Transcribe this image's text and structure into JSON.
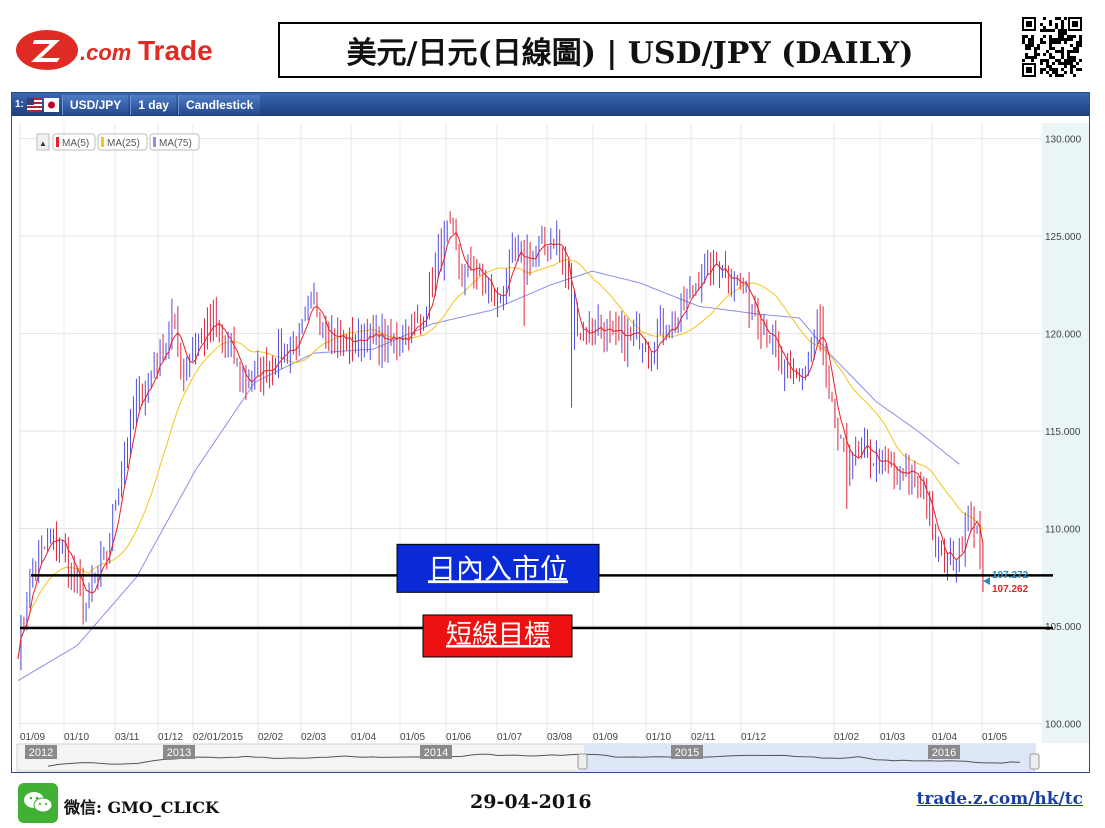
{
  "header": {
    "logo_text": "Z.com Trade",
    "title": "美元/日元(日線圖) | USD/JPY (DAILY)"
  },
  "toolbar": {
    "index": "1:",
    "symbol": "USD/JPY",
    "interval": "1 day",
    "style": "Candlestick"
  },
  "legend": {
    "toggle": "▲",
    "items": [
      {
        "label": "MA(5)",
        "color": "#e8202a"
      },
      {
        "label": "MA(25)",
        "color": "#f5c518"
      },
      {
        "label": "MA(75)",
        "color": "#8a8ee8"
      }
    ]
  },
  "chart_data": {
    "type": "candlestick",
    "ylim": [
      99,
      130.8
    ],
    "y_ticks": [
      "130.000",
      "125.000",
      "120.000",
      "115.000",
      "110.000",
      "105.000",
      "100.000"
    ],
    "x_ticks": [
      "01/09",
      "01/10",
      "03/11",
      "01/12",
      "02/01/2015",
      "02/02",
      "02/03",
      "01/04",
      "01/05",
      "01/06",
      "01/07",
      "03/08",
      "01/09",
      "01/10",
      "02/11",
      "01/12",
      "01/02",
      "01/03",
      "01/04",
      "01/05"
    ],
    "years": [
      "2012",
      "2013",
      "2014",
      "2015",
      "2016"
    ],
    "price_key": [
      [
        0,
        104.0
      ],
      [
        4,
        107.5
      ],
      [
        10,
        109.2
      ],
      [
        14,
        109.5
      ],
      [
        19,
        107.5
      ],
      [
        23,
        106.0
      ],
      [
        26,
        107.5
      ],
      [
        30,
        108.5
      ],
      [
        34,
        112.5
      ],
      [
        40,
        116.5
      ],
      [
        46,
        118.0
      ],
      [
        52,
        120.5
      ],
      [
        56,
        118.5
      ],
      [
        60,
        119.5
      ],
      [
        66,
        120.5
      ],
      [
        72,
        119.0
      ],
      [
        76,
        117.5
      ],
      [
        82,
        118.0
      ],
      [
        88,
        119.0
      ],
      [
        94,
        119.5
      ],
      [
        100,
        121.5
      ],
      [
        106,
        120.0
      ],
      [
        112,
        119.5
      ],
      [
        118,
        120.0
      ],
      [
        124,
        119.5
      ],
      [
        130,
        120.0
      ],
      [
        136,
        120.5
      ],
      [
        142,
        124.0
      ],
      [
        146,
        125.0
      ],
      [
        150,
        123.0
      ],
      [
        154,
        123.5
      ],
      [
        158,
        122.5
      ],
      [
        162,
        121.5
      ],
      [
        166,
        123.5
      ],
      [
        172,
        124.0
      ],
      [
        178,
        124.5
      ],
      [
        182,
        125.0
      ],
      [
        186,
        122.5
      ],
      [
        190,
        120.0
      ],
      [
        196,
        120.5
      ],
      [
        202,
        119.5
      ],
      [
        208,
        120.0
      ],
      [
        214,
        119.5
      ],
      [
        220,
        120.5
      ],
      [
        224,
        121.0
      ],
      [
        230,
        123.0
      ],
      [
        236,
        123.5
      ],
      [
        242,
        123.0
      ],
      [
        248,
        121.5
      ],
      [
        254,
        120.0
      ],
      [
        258,
        118.0
      ],
      [
        262,
        117.5
      ],
      [
        266,
        118.0
      ],
      [
        270,
        120.5
      ],
      [
        274,
        116.5
      ],
      [
        278,
        114.0
      ],
      [
        282,
        113.5
      ],
      [
        286,
        114.0
      ],
      [
        290,
        113.5
      ],
      [
        294,
        113.0
      ],
      [
        298,
        112.5
      ],
      [
        302,
        113.0
      ],
      [
        306,
        112.0
      ],
      [
        310,
        109.0
      ],
      [
        314,
        108.5
      ],
      [
        318,
        109.0
      ],
      [
        322,
        111.0
      ],
      [
        324,
        109.5
      ],
      [
        326,
        107.3
      ]
    ],
    "ma75_key": [
      [
        0,
        102.2
      ],
      [
        20,
        104.0
      ],
      [
        40,
        107.5
      ],
      [
        60,
        113.0
      ],
      [
        80,
        117.5
      ],
      [
        100,
        119.0
      ],
      [
        120,
        119.2
      ],
      [
        140,
        120.5
      ],
      [
        160,
        121.2
      ],
      [
        180,
        122.5
      ],
      [
        194,
        123.2
      ],
      [
        210,
        122.6
      ],
      [
        230,
        121.4
      ],
      [
        250,
        121.0
      ],
      [
        264,
        120.8
      ],
      [
        274,
        119.0
      ],
      [
        290,
        116.5
      ],
      [
        304,
        115.0
      ],
      [
        318,
        113.3
      ]
    ],
    "annotations": {
      "entry_label": "日內入市位",
      "target_label": "短線目標",
      "entry_level": 107.6,
      "target_level": 104.9,
      "price_tags": [
        "107.272",
        "107.262"
      ]
    }
  },
  "footer": {
    "wechat_label": "微信: GMO_CLICK",
    "date": "29-04-2016",
    "url": "trade.z.com/hk/tc"
  }
}
